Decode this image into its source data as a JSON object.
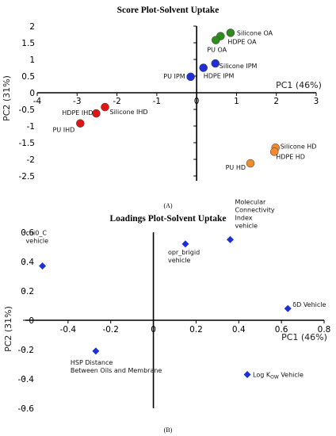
{
  "chart_data": [
    {
      "type": "scatter",
      "title": "Score Plot-Solvent Uptake",
      "panel_label": "(A)",
      "xlabel": "PC1 (46%)",
      "ylabel": "PC2 (31%)",
      "xlim": [
        -4,
        3
      ],
      "ylim": [
        -2.5,
        2
      ],
      "xticks": [
        "-4",
        "-3",
        "-2",
        "-1",
        "0",
        "1",
        "2",
        "3"
      ],
      "xtick_values": [
        -4,
        -3,
        -2,
        -1,
        0,
        1,
        2,
        3
      ],
      "yticks": [
        "2",
        "1.5",
        "1",
        "0.5",
        "0",
        "-0.5",
        "-1",
        "-1.5",
        "-2",
        "-2.5"
      ],
      "ytick_values": [
        2,
        1.5,
        1,
        0.5,
        0,
        -0.5,
        -1,
        -1.5,
        -2,
        -2.5
      ],
      "grid": false,
      "marker": "circle",
      "colors": {
        "OA": "#2e8b1e",
        "IPM": "#1f2fd6",
        "IHD": "#e01515",
        "HD": "#f08a30"
      },
      "points": [
        {
          "label": "Silicone OA",
          "x": 0.85,
          "y": 1.8,
          "group": "OA"
        },
        {
          "label": "HDPE OA",
          "x": 0.6,
          "y": 1.7,
          "group": "OA"
        },
        {
          "label": "PU OA",
          "x": 0.48,
          "y": 1.58,
          "group": "OA"
        },
        {
          "label": "Silicone IPM",
          "x": 0.47,
          "y": 0.88,
          "group": "IPM"
        },
        {
          "label": "HDPE IPM",
          "x": 0.17,
          "y": 0.75,
          "group": "IPM"
        },
        {
          "label": "PU IPM",
          "x": -0.15,
          "y": 0.48,
          "group": "IPM"
        },
        {
          "label": "Silicone IHD",
          "x": -2.3,
          "y": -0.43,
          "group": "IHD"
        },
        {
          "label": "HDPE IHD",
          "x": -2.52,
          "y": -0.62,
          "group": "IHD"
        },
        {
          "label": "PU IHD",
          "x": -2.92,
          "y": -0.92,
          "group": "IHD"
        },
        {
          "label": "Silicone HD",
          "x": 1.98,
          "y": -1.65,
          "group": "HD"
        },
        {
          "label": "HDPE HD",
          "x": 1.95,
          "y": -1.77,
          "group": "HD"
        },
        {
          "label": "PU HD",
          "x": 1.35,
          "y": -2.12,
          "group": "HD"
        }
      ]
    },
    {
      "type": "scatter",
      "title": "Loadings Plot-Solvent Uptake",
      "panel_label": "(B)",
      "xlabel": "PC1 (46%)",
      "ylabel": "PC2 (31%)",
      "xlim": [
        -0.6,
        0.8
      ],
      "ylim": [
        -0.6,
        0.6
      ],
      "xticks": [
        "-0.4",
        "-0.2",
        "0",
        "0.2",
        "0.4",
        "0.6",
        "0.8"
      ],
      "xtick_values": [
        -0.4,
        -0.2,
        0,
        0.2,
        0.4,
        0.6,
        0.8
      ],
      "yticks": [
        "0.6",
        "0.4",
        "0.2",
        "0",
        "-0.2",
        "-0.4",
        "-0.6"
      ],
      "ytick_values": [
        0.6,
        0.4,
        0.2,
        0,
        -0.2,
        -0.4,
        -0.6
      ],
      "grid": false,
      "marker": "diamond",
      "color": "#1f2fd6",
      "points": [
        {
          "label_lines": [
            "chi0_C",
            "vehicle"
          ],
          "x": -0.52,
          "y": 0.37
        },
        {
          "label_lines": [
            "opr_brigid",
            "vehicle"
          ],
          "x": 0.15,
          "y": 0.52
        },
        {
          "label_lines": [
            "Molecular",
            "Connectivity",
            "Index",
            "vehicle"
          ],
          "x": 0.36,
          "y": 0.55
        },
        {
          "label_lines": [
            "δD Vehicle"
          ],
          "x": 0.63,
          "y": 0.08
        },
        {
          "label_lines": [
            "HSP Distance",
            "Between Oils and Membrane"
          ],
          "x": -0.27,
          "y": -0.21
        },
        {
          "label_lines": [
            "Log K",
            "OW",
            " Vehicle"
          ],
          "subscript": true,
          "x": 0.44,
          "y": -0.37
        }
      ]
    }
  ]
}
